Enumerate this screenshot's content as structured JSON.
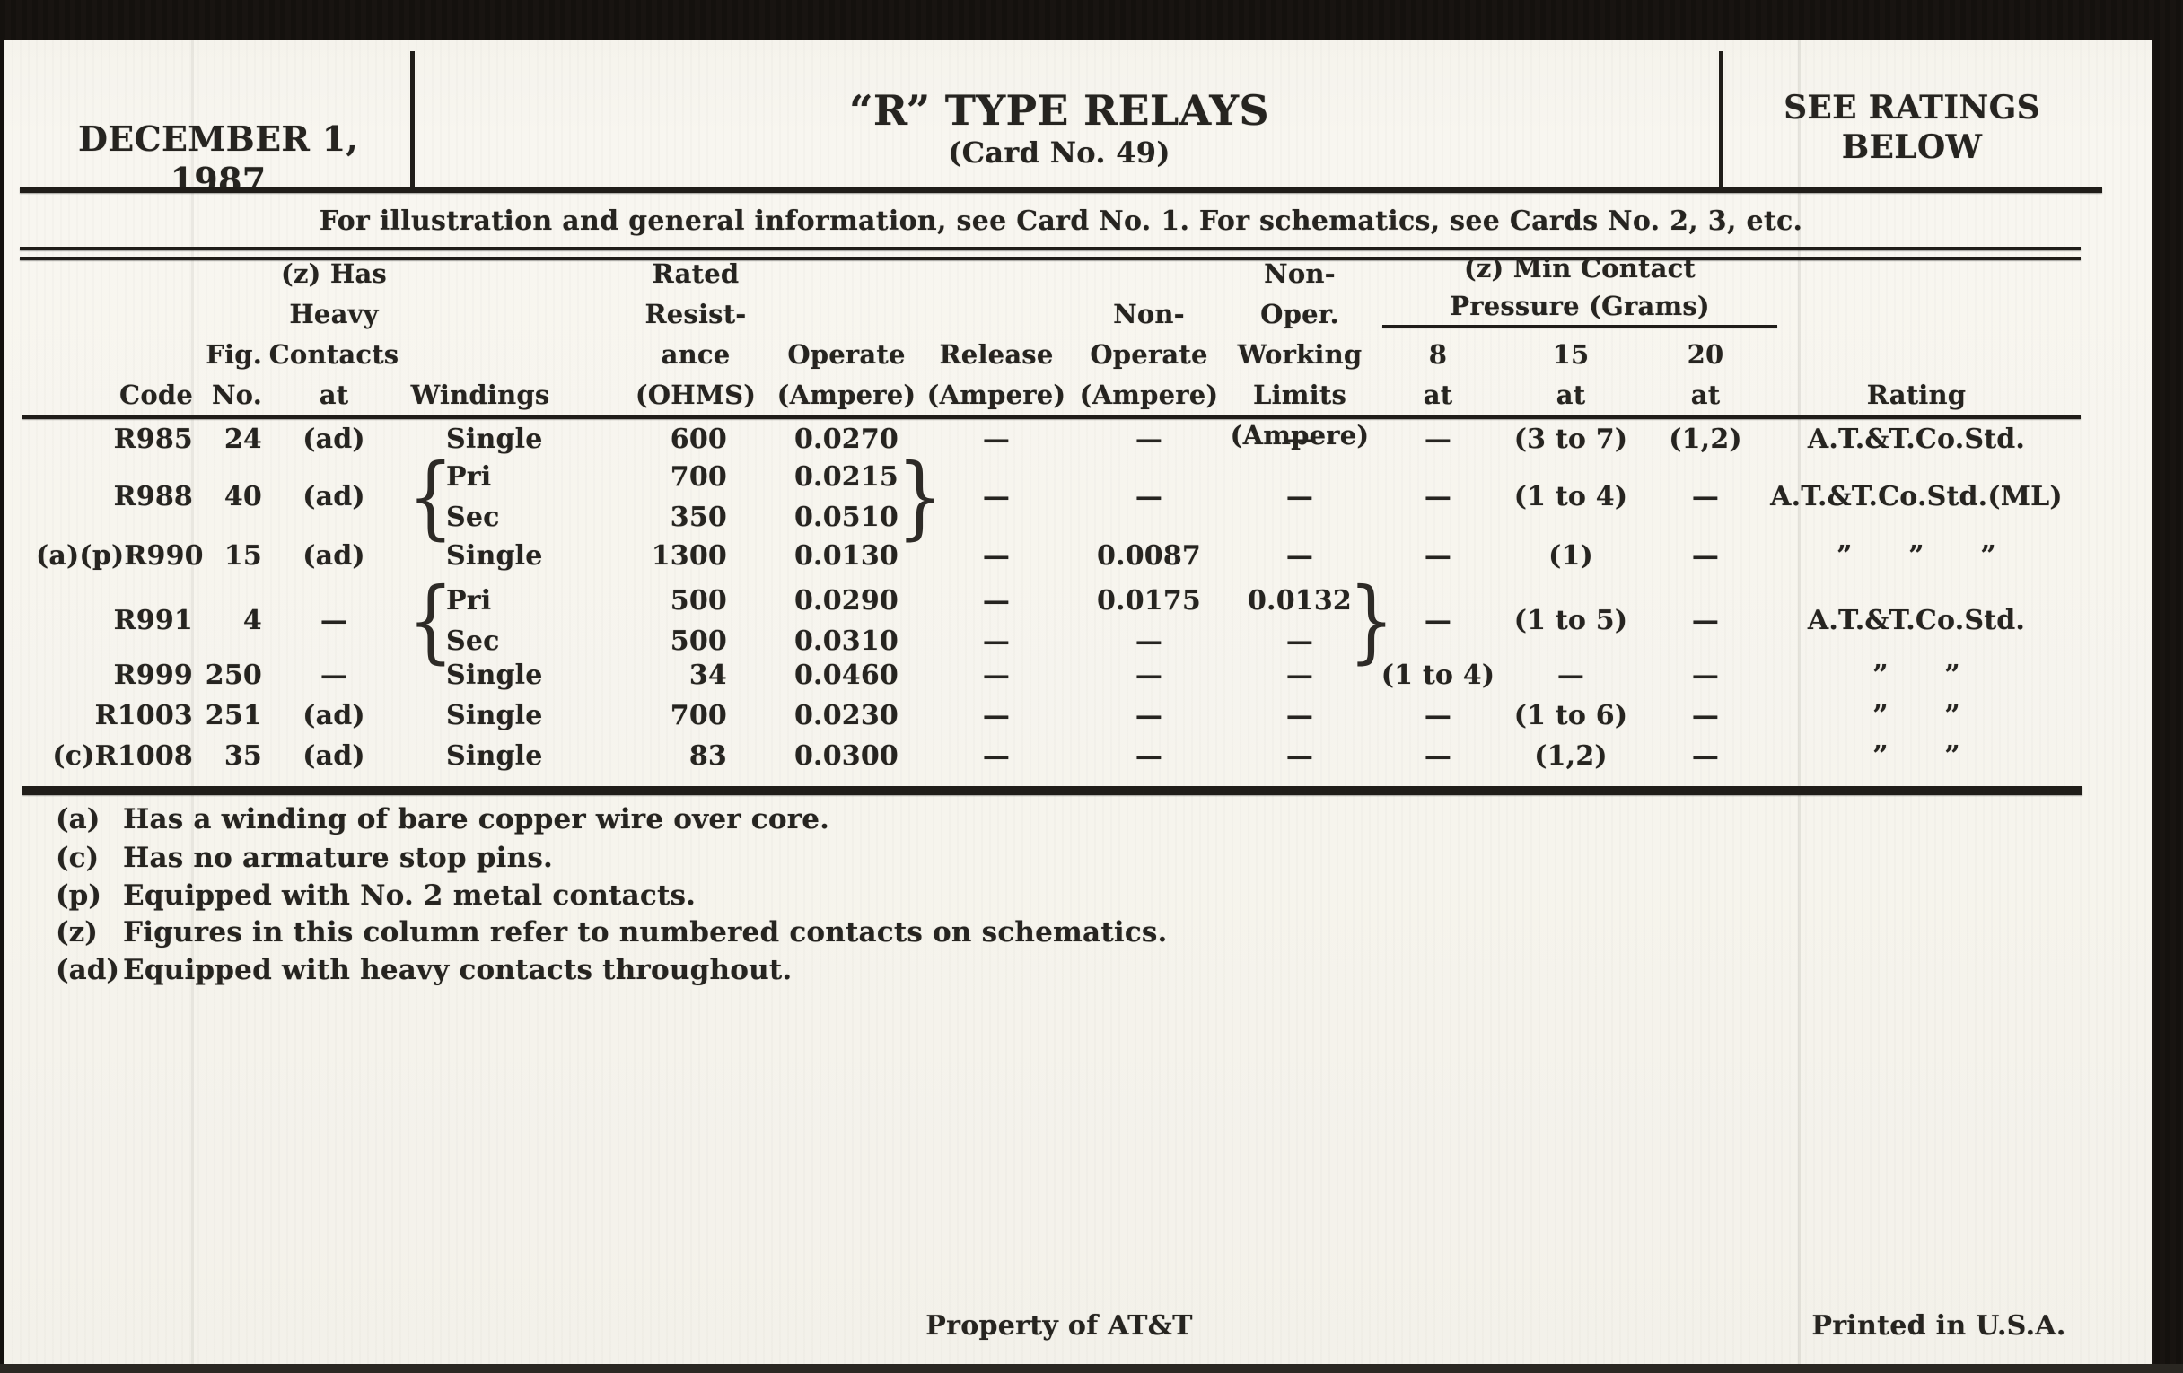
{
  "header": {
    "date": "DECEMBER 1, 1987",
    "title": "“R” TYPE RELAYS",
    "subtitle": "(Card No. 49)",
    "ratings_note": [
      "SEE RATINGS",
      "BELOW"
    ]
  },
  "info_line": "For illustration and general information, see Card No. 1. For schematics, see Cards No. 2, 3, etc.",
  "table": {
    "columns": {
      "code": [
        "Code"
      ],
      "fig": [
        "Fig.",
        "No."
      ],
      "contacts": [
        "(z) Has",
        "Heavy",
        "Contacts",
        "at"
      ],
      "windings": [
        "Windings"
      ],
      "resistance": [
        "Rated",
        "Resist-",
        "ance",
        "(OHMS)"
      ],
      "operate": [
        "Operate",
        "(Ampere)"
      ],
      "release": [
        "Release",
        "(Ampere)"
      ],
      "non_operate": [
        "Non-",
        "Operate",
        "(Ampere)"
      ],
      "work_limits": [
        "Non-Oper.",
        "Working",
        "Limits",
        "(Ampere)"
      ],
      "p8": [
        "8",
        "at"
      ],
      "p15": [
        "15",
        "at"
      ],
      "p20": [
        "20",
        "at"
      ],
      "rating": [
        "Rating"
      ]
    },
    "pressure_group": [
      "(z) Min Contact",
      "Pressure (Grams)"
    ],
    "rows": [
      {
        "code": "R985",
        "fig": "24",
        "contacts": "(ad)",
        "windings": [
          "Single"
        ],
        "resistance": [
          "600"
        ],
        "operate": [
          "0.0270"
        ],
        "release": [
          "—"
        ],
        "non_operate": [
          "—"
        ],
        "work_limits": [
          "—"
        ],
        "p8": [
          "—"
        ],
        "p15": "(3 to 7)",
        "p20": "(1,2)",
        "rating": "A.T.&T.Co.Std."
      },
      {
        "code": "R988",
        "fig": "40",
        "contacts": "(ad)",
        "windings": [
          "Pri",
          "Sec"
        ],
        "windings_brace": true,
        "resistance": [
          "700",
          "350"
        ],
        "operate": [
          "0.0215",
          "0.0510"
        ],
        "operate_brace": true,
        "release": [
          "—"
        ],
        "non_operate": [
          "—"
        ],
        "work_limits": [
          "—"
        ],
        "p8": [
          "—"
        ],
        "p15": "(1 to 4)",
        "p20": "—",
        "rating": "A.T.&T.Co.Std.(ML)"
      },
      {
        "code": "(a)(p)R990",
        "fig": "15",
        "contacts": "(ad)",
        "windings": [
          "Single"
        ],
        "resistance": [
          "1300"
        ],
        "operate": [
          "0.0130"
        ],
        "release": [
          "—"
        ],
        "non_operate": [
          "0.0087"
        ],
        "work_limits": [
          "—"
        ],
        "p8": [
          "—"
        ],
        "p15": "(1)",
        "p20": "—",
        "rating": "” ” ”"
      },
      {
        "code": "R991",
        "fig": "4",
        "contacts": "—",
        "windings": [
          "Pri",
          "Sec"
        ],
        "windings_brace": true,
        "resistance": [
          "500",
          "500"
        ],
        "operate": [
          "0.0290",
          "0.0310"
        ],
        "release": [
          "—",
          "—"
        ],
        "non_operate": [
          "0.0175",
          "—"
        ],
        "work_limits": [
          "0.0132",
          "—"
        ],
        "limits_brace": true,
        "p8": [
          "—"
        ],
        "p15": "(1 to 5)",
        "p20": "—",
        "rating": "A.T.&T.Co.Std."
      },
      {
        "code": "R999",
        "fig": "250",
        "contacts": "—",
        "windings": [
          "Single"
        ],
        "resistance": [
          "34"
        ],
        "operate": [
          "0.0460"
        ],
        "release": [
          "—"
        ],
        "non_operate": [
          "—"
        ],
        "work_limits": [
          "—"
        ],
        "p8": [
          "(1 to 4)"
        ],
        "p15": "—",
        "p20": "—",
        "rating": "” ”"
      },
      {
        "code": "R1003",
        "fig": "251",
        "contacts": "(ad)",
        "windings": [
          "Single"
        ],
        "resistance": [
          "700"
        ],
        "operate": [
          "0.0230"
        ],
        "release": [
          "—"
        ],
        "non_operate": [
          "—"
        ],
        "work_limits": [
          "—"
        ],
        "p8": [
          "—"
        ],
        "p15": "(1 to 6)",
        "p20": "—",
        "rating": "” ”"
      },
      {
        "code": "(c)R1008",
        "fig": "35",
        "contacts": "(ad)",
        "windings": [
          "Single"
        ],
        "resistance": [
          "83"
        ],
        "operate": [
          "0.0300"
        ],
        "release": [
          "—"
        ],
        "non_operate": [
          "—"
        ],
        "work_limits": [
          "—"
        ],
        "p8": [
          "—"
        ],
        "p15": "(1,2)",
        "p20": "—",
        "rating": "” ”"
      }
    ]
  },
  "footnotes": [
    {
      "label": "(a)",
      "text": "Has a winding of bare copper wire over core."
    },
    {
      "label": "(c)",
      "text": "Has no armature stop pins."
    },
    {
      "label": "(p)",
      "text": "Equipped with No. 2 metal contacts."
    },
    {
      "label": "(z)",
      "text": "Figures in this column refer to numbered contacts on schematics."
    },
    {
      "label": "(ad)",
      "text": "Equipped with heavy contacts throughout."
    }
  ],
  "footer": {
    "center": "Property of AT&T",
    "right": "Printed in U.S.A."
  },
  "colors": {
    "ink": "#262420",
    "paper": "#f6f4ed",
    "rule": "#201d19"
  }
}
